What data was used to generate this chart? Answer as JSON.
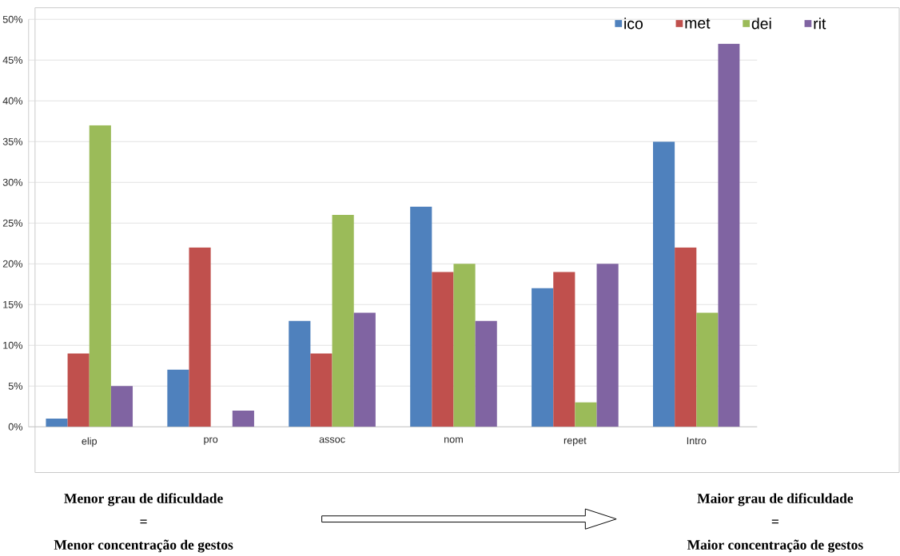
{
  "chart_data": {
    "type": "bar",
    "categories": [
      "elip",
      "pro",
      "assoc",
      "nom",
      "repet",
      "Intro"
    ],
    "series": [
      {
        "name": "ico",
        "color": "#4f81bd",
        "values": [
          1,
          7,
          13,
          27,
          17,
          35
        ]
      },
      {
        "name": "met",
        "color": "#c0504d",
        "values": [
          9,
          22,
          9,
          19,
          19,
          22
        ]
      },
      {
        "name": "dei",
        "color": "#9bbb59",
        "values": [
          37,
          0,
          26,
          20,
          3,
          14
        ]
      },
      {
        "name": "rit",
        "color": "#8064a2",
        "values": [
          5,
          2,
          14,
          13,
          20,
          47
        ]
      }
    ],
    "ylim": [
      0,
      50
    ],
    "yticks": [
      {
        "value": 0,
        "label": "0%"
      },
      {
        "value": 5,
        "label": "5%"
      },
      {
        "value": 10,
        "label": "10%"
      },
      {
        "value": 15,
        "label": "15%"
      },
      {
        "value": 20,
        "label": "20%"
      },
      {
        "value": 25,
        "label": "25%"
      },
      {
        "value": 30,
        "label": "30%"
      },
      {
        "value": 35,
        "label": "35%"
      },
      {
        "value": 40,
        "label": "40%"
      },
      {
        "value": 45,
        "label": "45%"
      },
      {
        "value": 50,
        "label": "50%"
      }
    ],
    "grid": "y",
    "legend": "top right",
    "annotations": [
      "Menor grau de dificuldade",
      "=",
      "Menor concentração de gestos",
      "Maior grau de dificuldade",
      "=",
      "Maior concentração de gestos"
    ]
  }
}
